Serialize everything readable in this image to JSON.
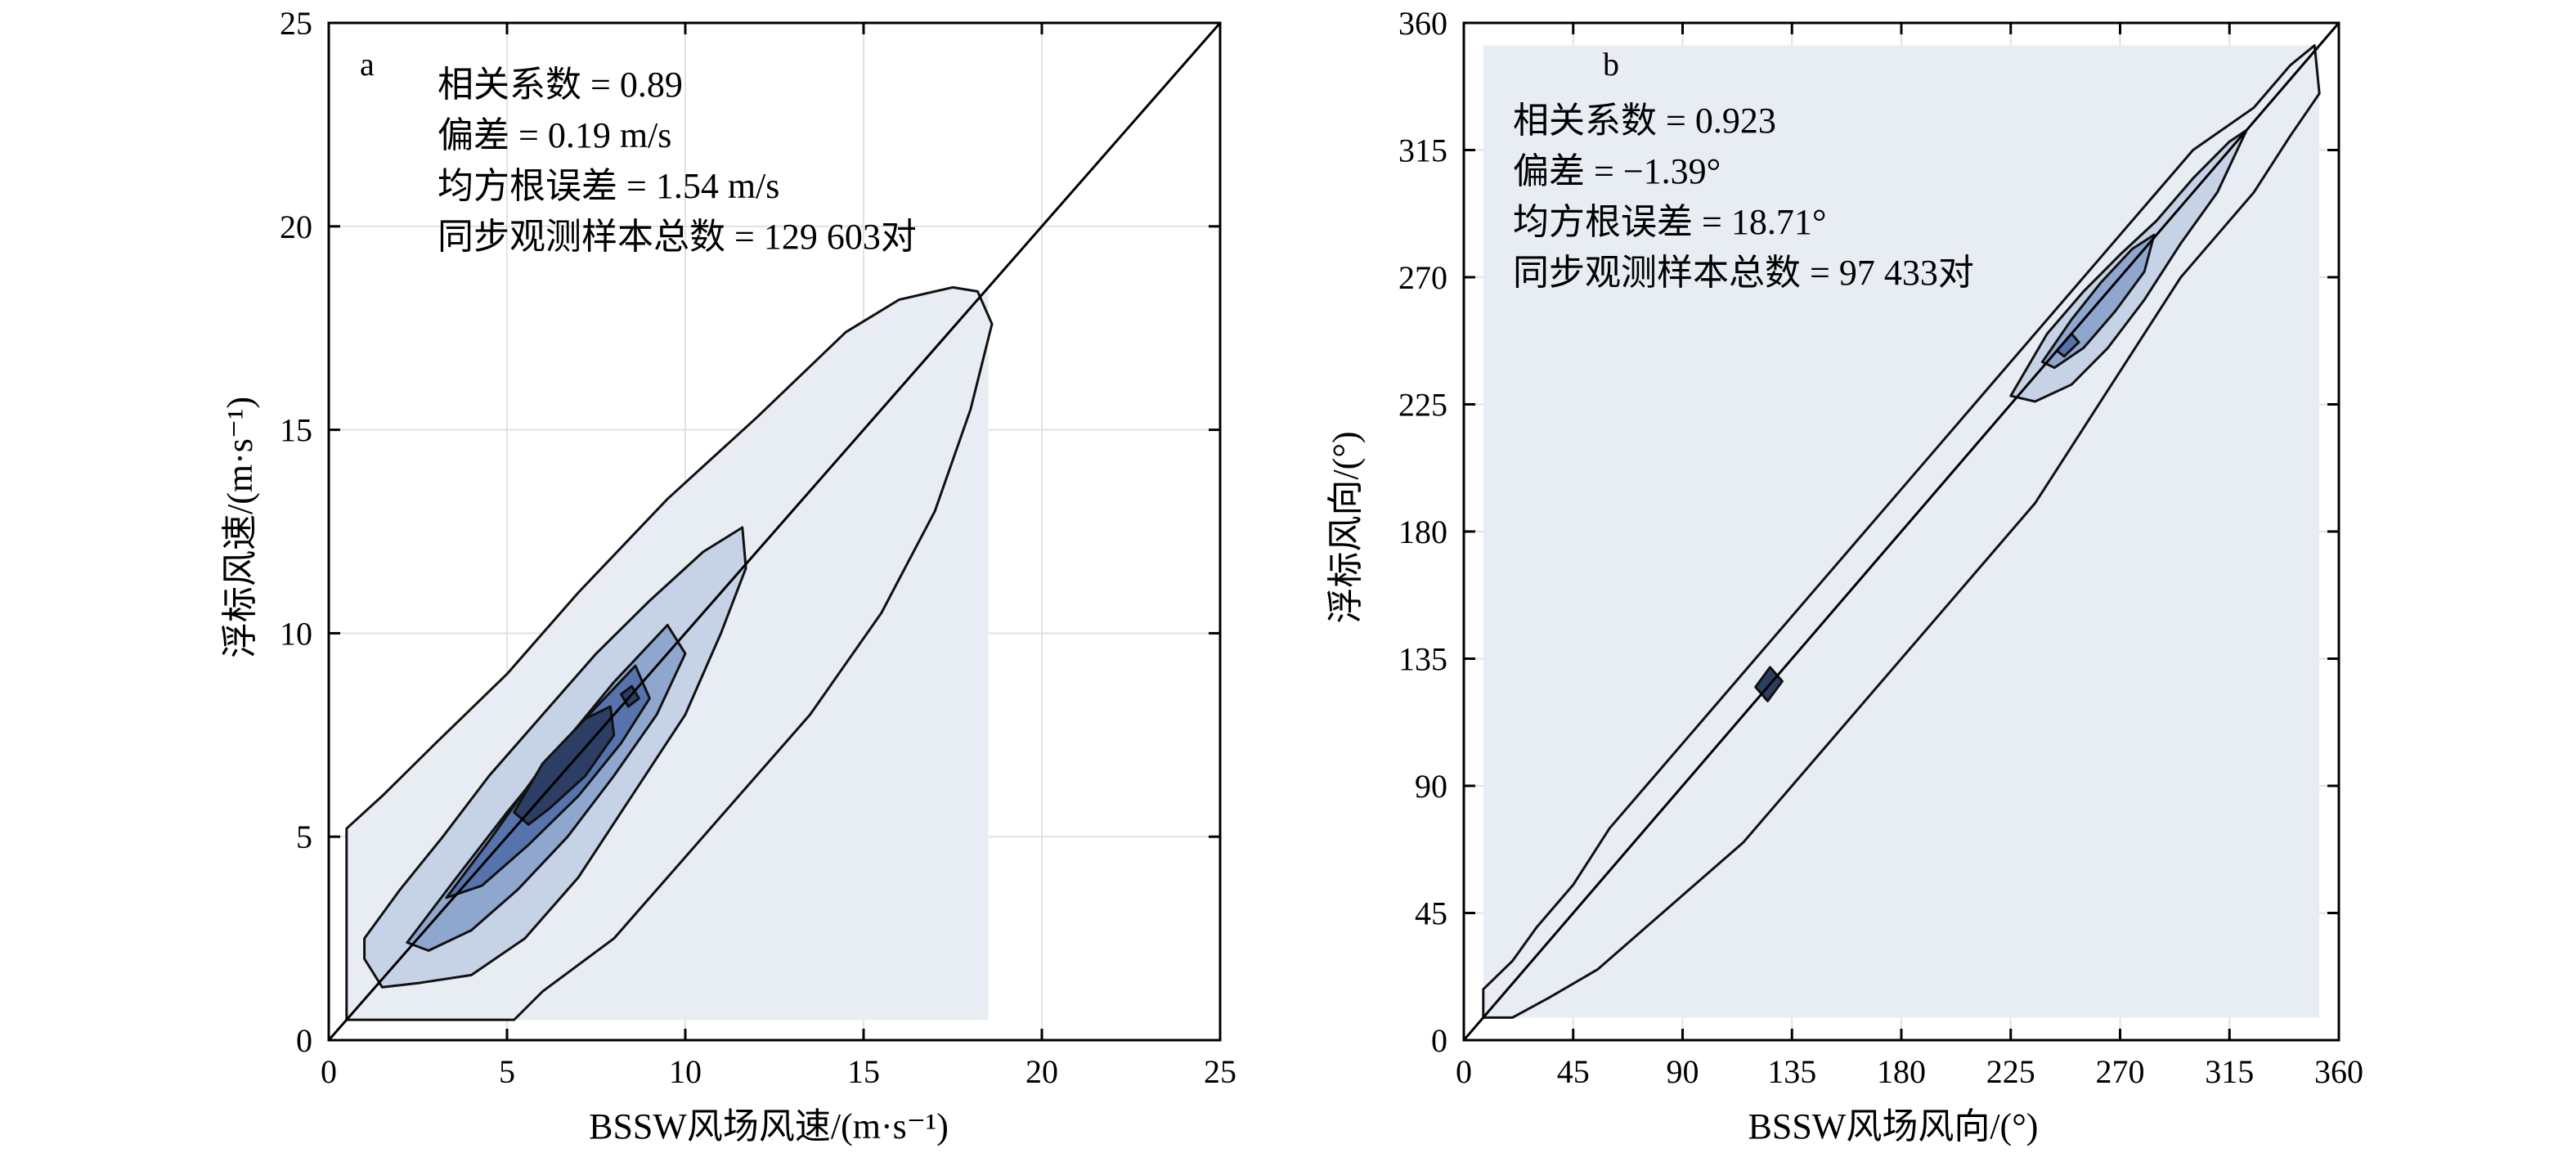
{
  "chart_data": [
    {
      "type": "contour",
      "panel_label": "a",
      "xlabel": "BSSW风场风速/(m·s⁻¹)",
      "ylabel": "浮标风速/(m·s⁻¹)",
      "xlim": [
        0,
        25
      ],
      "ylim": [
        0,
        25
      ],
      "xticks": [
        0,
        5,
        10,
        15,
        20,
        25
      ],
      "yticks": [
        0,
        5,
        10,
        15,
        20,
        25
      ],
      "grid": true,
      "reference_line": "y = x",
      "stats": [
        "相关系数 = 0.89",
        "偏差 = 0.19 m/s",
        "均方根误差 = 1.54 m/s",
        "同步观测样本总数 = 129 603对"
      ],
      "fill_colors": [
        "#e8edf4",
        "#c6d2e6",
        "#8fa6cf",
        "#5673ad",
        "#2c3e63"
      ],
      "levels": [
        {
          "polygon": [
            [
              0.5,
              0.5
            ],
            [
              18.5,
              18.5
            ],
            [
              18.5,
              0.5
            ]
          ],
          "note": "domain fill"
        },
        {
          "polygon": [
            [
              0.5,
              5.2
            ],
            [
              1.5,
              6
            ],
            [
              3,
              7.3
            ],
            [
              5,
              9
            ],
            [
              7,
              11
            ],
            [
              9.5,
              13.3
            ],
            [
              12,
              15.3
            ],
            [
              14.5,
              17.4
            ],
            [
              16,
              18.2
            ],
            [
              17.5,
              18.5
            ],
            [
              18.2,
              18.4
            ],
            [
              18.6,
              17.6
            ],
            [
              18,
              15.5
            ],
            [
              17,
              13
            ],
            [
              15.5,
              10.5
            ],
            [
              13.5,
              8
            ],
            [
              11.5,
              6
            ],
            [
              9.5,
              4
            ],
            [
              8,
              2.5
            ],
            [
              6,
              1.2
            ],
            [
              5.2,
              0.5
            ],
            [
              3.5,
              0.5
            ],
            [
              1.3,
              0.5
            ],
            [
              0.5,
              0.5
            ]
          ]
        },
        {
          "polygon": [
            [
              1,
              2.5
            ],
            [
              2,
              3.7
            ],
            [
              3.2,
              5
            ],
            [
              4.5,
              6.5
            ],
            [
              6,
              8
            ],
            [
              7.5,
              9.5
            ],
            [
              9,
              10.8
            ],
            [
              10.5,
              12
            ],
            [
              11.6,
              12.6
            ],
            [
              11.7,
              11.6
            ],
            [
              11,
              10
            ],
            [
              10,
              8
            ],
            [
              8.5,
              6
            ],
            [
              7,
              4
            ],
            [
              5.5,
              2.5
            ],
            [
              4,
              1.6
            ],
            [
              2.5,
              1.4
            ],
            [
              1.5,
              1.3
            ],
            [
              1,
              2
            ]
          ]
        },
        {
          "polygon": [
            [
              2.2,
              2.4
            ],
            [
              3.5,
              3.9
            ],
            [
              5,
              5.6
            ],
            [
              6.5,
              7.2
            ],
            [
              8,
              8.8
            ],
            [
              9.5,
              10.2
            ],
            [
              10,
              9.5
            ],
            [
              9.2,
              8
            ],
            [
              8,
              6.5
            ],
            [
              6.7,
              5
            ],
            [
              5.3,
              3.7
            ],
            [
              4,
              2.7
            ],
            [
              2.8,
              2.2
            ]
          ]
        },
        {
          "polygon": [
            [
              3.3,
              3.5
            ],
            [
              4.5,
              4.9
            ],
            [
              5.8,
              6.5
            ],
            [
              7.3,
              8
            ],
            [
              8.6,
              9.2
            ],
            [
              9,
              8.4
            ],
            [
              8.2,
              7.3
            ],
            [
              7,
              6
            ],
            [
              5.6,
              4.8
            ],
            [
              4.3,
              3.8
            ]
          ]
        },
        {
          "polygon": [
            [
              5.2,
              5.6
            ],
            [
              6,
              6.8
            ],
            [
              7.2,
              7.9
            ],
            [
              7.9,
              8.2
            ],
            [
              8,
              7.5
            ],
            [
              7.2,
              6.5
            ],
            [
              6.2,
              5.7
            ],
            [
              5.6,
              5.3
            ]
          ]
        },
        {
          "polygon": [
            [
              8.2,
              8.5
            ],
            [
              8.5,
              8.7
            ],
            [
              8.7,
              8.4
            ],
            [
              8.4,
              8.2
            ]
          ]
        }
      ]
    },
    {
      "type": "contour",
      "panel_label": "b",
      "xlabel": "BSSW风场风向/(°)",
      "ylabel": "浮标风向/(°)",
      "xlim": [
        0,
        360
      ],
      "ylim": [
        0,
        360
      ],
      "xticks": [
        0,
        45,
        90,
        135,
        180,
        225,
        270,
        315,
        360
      ],
      "yticks": [
        0,
        45,
        90,
        135,
        180,
        225,
        270,
        315,
        360
      ],
      "grid": true,
      "reference_line": "y = x",
      "stats": [
        "相关系数 = 0.923",
        "偏差 = −1.39°",
        "均方根误差 = 18.71°",
        "同步观测样本总数 = 97 433对"
      ],
      "fill_colors": [
        "#e8edf4",
        "#c6d2e6",
        "#8fa6cf",
        "#5673ad",
        "#2c3e63"
      ],
      "levels": [
        {
          "polygon": [
            [
              8,
              8
            ],
            [
              8,
              352
            ],
            [
              352,
              352
            ],
            [
              352,
              8
            ]
          ],
          "note": "domain fill"
        },
        {
          "polygon": [
            [
              8,
              18
            ],
            [
              20,
              28
            ],
            [
              30,
              40
            ],
            [
              45,
              55
            ],
            [
              60,
              75
            ],
            [
              75,
              90
            ],
            [
              90,
              105
            ],
            [
              110,
              125
            ],
            [
              130,
              145
            ],
            [
              150,
              165
            ],
            [
              170,
              185
            ],
            [
              195,
              210
            ],
            [
              220,
              235
            ],
            [
              240,
              255
            ],
            [
              260,
              275
            ],
            [
              280,
              295
            ],
            [
              300,
              315
            ],
            [
              325,
              330
            ],
            [
              340,
              345
            ],
            [
              350,
              352
            ],
            [
              352,
              335
            ],
            [
              340,
              320
            ],
            [
              325,
              300
            ],
            [
              310,
              285
            ],
            [
              295,
              270
            ],
            [
              280,
              250
            ],
            [
              265,
              230
            ],
            [
              250,
              210
            ],
            [
              235,
              190
            ],
            [
              215,
              170
            ],
            [
              195,
              150
            ],
            [
              175,
              130
            ],
            [
              155,
              110
            ],
            [
              135,
              90
            ],
            [
              115,
              70
            ],
            [
              95,
              55
            ],
            [
              75,
              40
            ],
            [
              55,
              25
            ],
            [
              35,
              15
            ],
            [
              20,
              8
            ],
            [
              8,
              8
            ]
          ]
        },
        {
          "polygon": [
            [
              225,
              228
            ],
            [
              240,
              250
            ],
            [
              255,
              265
            ],
            [
              270,
              278
            ],
            [
              285,
              290
            ],
            [
              300,
              305
            ],
            [
              315,
              318
            ],
            [
              322,
              322
            ],
            [
              310,
              300
            ],
            [
              295,
              282
            ],
            [
              280,
              262
            ],
            [
              265,
              245
            ],
            [
              250,
              232
            ],
            [
              235,
              226
            ]
          ]
        },
        {
          "polygon": [
            [
              238,
              240
            ],
            [
              250,
              255
            ],
            [
              262,
              268
            ],
            [
              275,
              280
            ],
            [
              284,
              285
            ],
            [
              280,
              272
            ],
            [
              268,
              258
            ],
            [
              255,
              245
            ],
            [
              243,
              238
            ]
          ]
        },
        {
          "polygon": [
            [
              244,
              244
            ],
            [
              250,
              250
            ],
            [
              253,
              247
            ],
            [
              247,
              242
            ]
          ]
        },
        {
          "polygon": [
            [
              120,
              125
            ],
            [
              126,
              132
            ],
            [
              131,
              127
            ],
            [
              125,
              120
            ]
          ]
        }
      ]
    }
  ]
}
